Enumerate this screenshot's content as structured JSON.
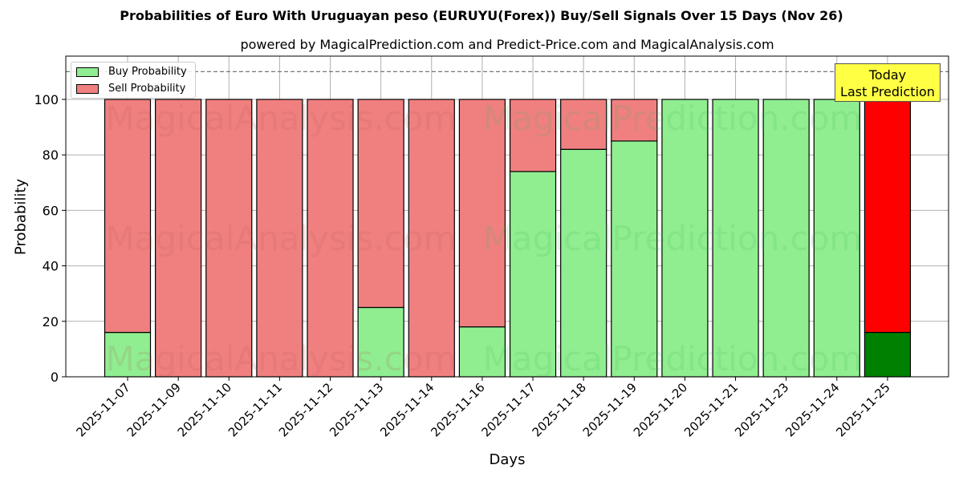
{
  "chart_data": {
    "type": "bar",
    "stacked": true,
    "title": "Probabilities of Euro With Uruguayan peso (EURUYU(Forex)) Buy/Sell Signals Over 15 Days (Nov 26)",
    "subtitle": "powered by MagicalPrediction.com and Predict-Price.com and MagicalAnalysis.com",
    "xlabel": "Days",
    "ylabel": "Probability",
    "ylim": [
      0,
      115
    ],
    "yticks": [
      0,
      20,
      40,
      60,
      80,
      100
    ],
    "grid": true,
    "legend_position": "upper left",
    "reference_line": 110,
    "categories": [
      "2025-11-07",
      "2025-11-09",
      "2025-11-10",
      "2025-11-11",
      "2025-11-12",
      "2025-11-13",
      "2025-11-14",
      "2025-11-16",
      "2025-11-17",
      "2025-11-18",
      "2025-11-19",
      "2025-11-20",
      "2025-11-21",
      "2025-11-23",
      "2025-11-24",
      "2025-11-25"
    ],
    "series": [
      {
        "name": "Buy Probability",
        "values": [
          16,
          0,
          0,
          0,
          0,
          25,
          0,
          18,
          74,
          82,
          85,
          100,
          100,
          100,
          100,
          16
        ]
      },
      {
        "name": "Sell Probability",
        "values": [
          84,
          100,
          100,
          100,
          100,
          75,
          100,
          82,
          26,
          18,
          15,
          0,
          0,
          0,
          0,
          84
        ]
      }
    ],
    "colors": {
      "buy": "#90ee90",
      "sell": "#f08080",
      "buy_today": "#008000",
      "sell_today": "#ff0000",
      "annotation_bg": "#ffff44"
    },
    "annotation": {
      "line1": "Today",
      "line2": "Last Prediction"
    },
    "watermarks": [
      "MagicalAnalysis.com",
      "MagicalPrediction.com"
    ]
  },
  "legend": {
    "buy": "Buy Probability",
    "sell": "Sell Probability"
  }
}
